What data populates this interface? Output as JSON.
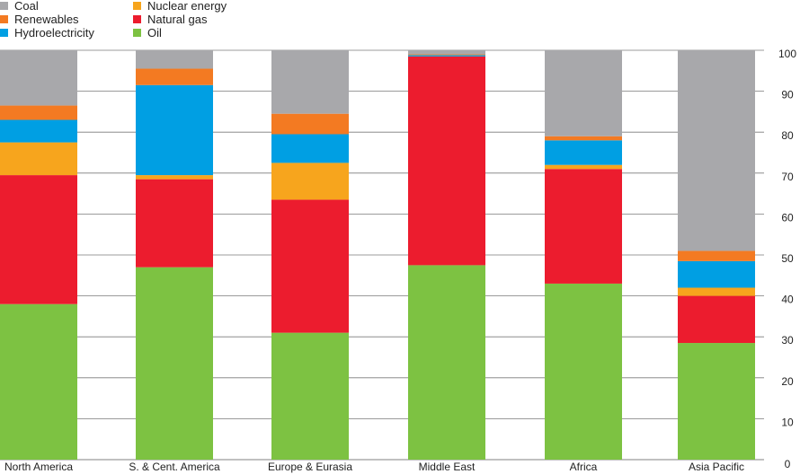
{
  "chart_data": {
    "type": "stacked-bar",
    "title": "",
    "xlabel": "",
    "ylabel": "",
    "ylim": [
      0,
      100
    ],
    "yticks": [
      0,
      10,
      20,
      30,
      40,
      50,
      60,
      70,
      80,
      90,
      100
    ],
    "y_axis_position": "right",
    "grid": true,
    "legend_position": "top-left",
    "categories": [
      "North America",
      "S. & Cent. America",
      "Europe & Eurasia",
      "Middle East",
      "Africa",
      "Asia Pacific"
    ],
    "series": [
      {
        "name": "Oil",
        "color": "#7dc242",
        "values": [
          38,
          47,
          31,
          47.5,
          43,
          28.5
        ]
      },
      {
        "name": "Natural gas",
        "color": "#ec1c2e",
        "values": [
          31.5,
          21.5,
          32.5,
          51,
          28,
          11.5
        ]
      },
      {
        "name": "Nuclear energy",
        "color": "#f7a51d",
        "values": [
          8,
          1,
          9,
          0,
          1,
          2
        ]
      },
      {
        "name": "Hydroelectricity",
        "color": "#009fe3",
        "values": [
          5.5,
          22,
          7,
          0.3,
          6,
          6.5
        ]
      },
      {
        "name": "Renewables",
        "color": "#f37a22",
        "values": [
          3.5,
          4,
          5,
          0.2,
          1,
          2.5
        ]
      },
      {
        "name": "Coal",
        "color": "#a8a8ab",
        "values": [
          13.5,
          4.5,
          15.5,
          1,
          21,
          49
        ]
      }
    ],
    "legend": [
      {
        "label": "Coal",
        "color": "#a8a8ab"
      },
      {
        "label": "Renewables",
        "color": "#f37a22"
      },
      {
        "label": "Hydroelectricity",
        "color": "#009fe3"
      },
      {
        "label": "Nuclear energy",
        "color": "#f7a51d"
      },
      {
        "label": "Natural gas",
        "color": "#ec1c2e"
      },
      {
        "label": "Oil",
        "color": "#7dc242"
      }
    ]
  }
}
